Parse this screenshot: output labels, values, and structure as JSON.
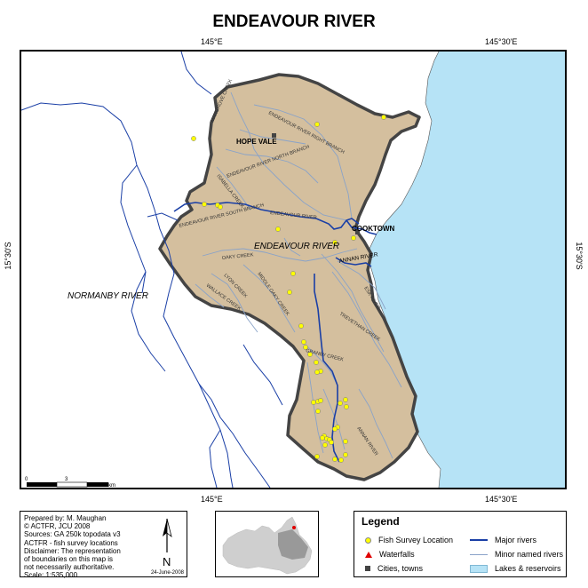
{
  "title": "ENDEAVOUR RIVER",
  "coords": {
    "top_left": "145°E",
    "top_right": "145°30'E",
    "bottom_left": "145°E",
    "bottom_right": "145°30'E",
    "left_lat": "15°30'S",
    "right_lat": "15°30'S"
  },
  "labels": {
    "hope_vale": "HOPE VALE",
    "cooktown": "COOKTOWN",
    "endeavour_main": "ENDEAVOUR RIVER",
    "normanby": "NORMANBY RIVER",
    "mangrove": "MANGROVE CREEK",
    "right_branch": "ENDEAVOUR RIVER RIGHT BRANCH",
    "north_branch": "ENDEAVOUR RIVER NORTH BRANCH",
    "isabella": "ISABELLA CREEK",
    "south_branch": "ENDEAVOUR RIVER SOUTH BRANCH",
    "endeavour_river": "ENDEAVOUR RIVER",
    "oaky": "OAKY CREEK",
    "lyon": "LYON CREEK",
    "middle_oaky": "MIDDLE OAKY CREEK",
    "wallace": "WALLACE CREEK",
    "annan_river": "ANNAN RIVER",
    "esk": "ESK RIVER",
    "trevethan": "TREVETHAN CREEK",
    "granby": "GRANBY CREEK",
    "annan_river2": "ANNAN RIVER"
  },
  "scalebar": {
    "zero": "0",
    "mid": "3",
    "unit": "km"
  },
  "info": {
    "lines": [
      "Prepared by: M. Maughan",
      "© ACTFR, JCU 2008",
      "Sources: GA 250k topodata v3",
      "ACTFR - fish survey locations",
      "Disclaimer: The representation",
      "of boundaries on this map is",
      "not necessarily authoritative.",
      "Scale: 1:535,000"
    ],
    "date": "24-June-2008",
    "north_letter": "N"
  },
  "legend": {
    "title": "Legend",
    "fish": "Fish Survey Location",
    "major": "Major rivers",
    "waterfalls": "Waterfalls",
    "minor": "Minor named rivers",
    "cities": "Cities, towns",
    "lakes": "Lakes & reservoirs"
  },
  "colors": {
    "catchment": "#d4bf9e",
    "ocean": "#b6e3f6",
    "major_river": "#1a3fa6",
    "minor_river": "#8aa3c8",
    "survey_point": "#ffff00",
    "waterfall": "#e00000",
    "city": "#444444"
  },
  "survey_points": [
    [
      357,
      82
    ],
    [
      432,
      74
    ],
    [
      218,
      98
    ],
    [
      230,
      172
    ],
    [
      245,
      173
    ],
    [
      248,
      175
    ],
    [
      313,
      200
    ],
    [
      377,
      215
    ],
    [
      398,
      210
    ],
    [
      330,
      250
    ],
    [
      326,
      271
    ],
    [
      339,
      309
    ],
    [
      342,
      327
    ],
    [
      344,
      333
    ],
    [
      349,
      341
    ],
    [
      356,
      350
    ],
    [
      361,
      360
    ],
    [
      357,
      361
    ],
    [
      358,
      394
    ],
    [
      361,
      393
    ],
    [
      353,
      395
    ],
    [
      358,
      405
    ],
    [
      383,
      396
    ],
    [
      389,
      392
    ],
    [
      390,
      400
    ],
    [
      380,
      423
    ],
    [
      377,
      425
    ],
    [
      365,
      433
    ],
    [
      363,
      435
    ],
    [
      368,
      436
    ],
    [
      371,
      437
    ],
    [
      373,
      440
    ],
    [
      366,
      443
    ],
    [
      389,
      439
    ],
    [
      357,
      456
    ],
    [
      377,
      459
    ],
    [
      384,
      460
    ],
    [
      389,
      454
    ]
  ]
}
